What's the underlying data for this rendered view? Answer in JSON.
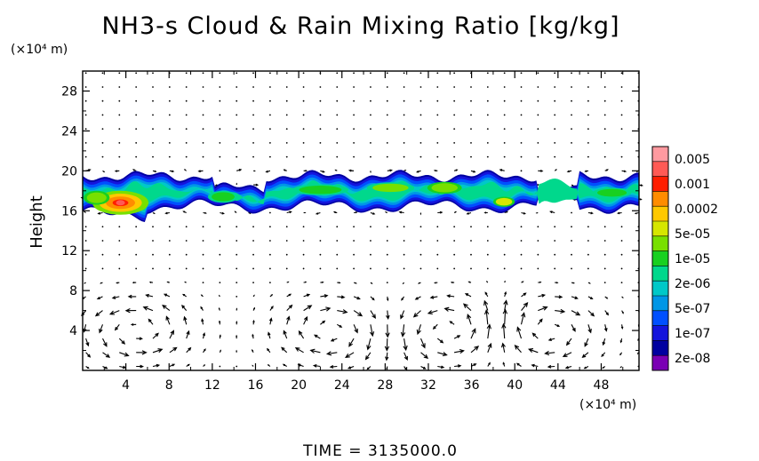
{
  "chart_data": {
    "type": "heatmap",
    "title": "NH3-s Cloud & Rain Mixing Ratio [kg/kg]",
    "ylabel": "Height",
    "xlabel": "",
    "x_unit": "(×10⁴ m)",
    "y_unit": "(×10⁴ m)",
    "xlim": [
      0,
      51.5
    ],
    "ylim": [
      0,
      30
    ],
    "x_ticks": [
      "4",
      "8",
      "12",
      "16",
      "20",
      "24",
      "28",
      "32",
      "36",
      "40",
      "44",
      "48"
    ],
    "x_tick_values": [
      4,
      8,
      12,
      16,
      20,
      24,
      28,
      32,
      36,
      40,
      44,
      48
    ],
    "y_ticks": [
      "4",
      "8",
      "12",
      "16",
      "20",
      "24",
      "28"
    ],
    "y_tick_values": [
      4,
      8,
      12,
      16,
      20,
      24,
      28
    ],
    "colorbar": {
      "labels": [
        "0.005",
        "0.001",
        "0.0002",
        "5e-05",
        "1e-05",
        "2e-06",
        "5e-07",
        "1e-07",
        "2e-08"
      ],
      "colors": [
        "#ff9aa0",
        "#ff5a55",
        "#ff1e00",
        "#ff8c00",
        "#ffc800",
        "#d6e600",
        "#78e000",
        "#18d020",
        "#00d88c",
        "#00c8c8",
        "#0096e6",
        "#0050ff",
        "#1414dc",
        "#0000a0",
        "#7a00b4"
      ]
    },
    "cloud_layer": {
      "x_range": [
        0,
        51.5
      ],
      "base_height": 16.5,
      "top_height": 19.5,
      "max_value": 0.001,
      "max_location": [
        3.5,
        16.8
      ]
    },
    "wind_vectors": {
      "description": "",
      "circulation_centers_x": [
        5,
        23,
        34,
        43
      ],
      "circulation_height": 4
    },
    "footer": "TIME = 3135000.0"
  }
}
